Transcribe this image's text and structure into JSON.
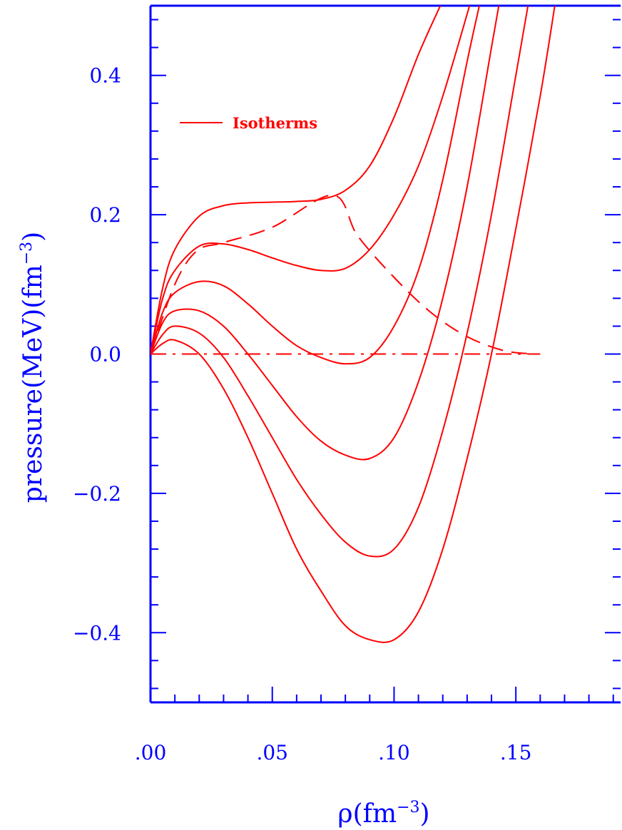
{
  "chart_data": {
    "type": "line",
    "title": "",
    "xlabel": "ρ(fm",
    "xlabel_exp": "−3",
    "xlabel_close": ")",
    "ylabel": "pressure(MeV)(fm",
    "ylabel_exp": "−3",
    "ylabel_close": ")",
    "xlim": [
      0,
      0.193
    ],
    "ylim": [
      -0.5,
      0.5
    ],
    "x_ticks": [
      {
        "value": 0.0,
        "label": ".00"
      },
      {
        "value": 0.05,
        "label": ".05"
      },
      {
        "value": 0.1,
        "label": ".10"
      },
      {
        "value": 0.15,
        "label": ".15"
      }
    ],
    "y_ticks": [
      {
        "value": 0.4,
        "label": "0.4"
      },
      {
        "value": 0.2,
        "label": "0.2"
      },
      {
        "value": 0.0,
        "label": "0.0"
      },
      {
        "value": -0.2,
        "label": "−0.2"
      },
      {
        "value": -0.4,
        "label": "−0.4"
      }
    ],
    "grid": false,
    "legend": {
      "position": "top-left",
      "entries": [
        {
          "label": "Isotherms",
          "style": "solid"
        }
      ]
    },
    "colors": {
      "axes": "#0000ff",
      "series": "#ff0000"
    },
    "series": [
      {
        "style": "solid",
        "points": [
          [
            0,
            0
          ],
          [
            0.005,
            0.095
          ],
          [
            0.01,
            0.15
          ],
          [
            0.02,
            0.198
          ],
          [
            0.03,
            0.213
          ],
          [
            0.04,
            0.217
          ],
          [
            0.05,
            0.218
          ],
          [
            0.06,
            0.219
          ],
          [
            0.07,
            0.222
          ],
          [
            0.08,
            0.235
          ],
          [
            0.09,
            0.27
          ],
          [
            0.1,
            0.34
          ],
          [
            0.11,
            0.43
          ],
          [
            0.119,
            0.5
          ]
        ]
      },
      {
        "style": "solid",
        "points": [
          [
            0,
            0
          ],
          [
            0.005,
            0.08
          ],
          [
            0.01,
            0.12
          ],
          [
            0.02,
            0.155
          ],
          [
            0.03,
            0.158
          ],
          [
            0.04,
            0.15
          ],
          [
            0.05,
            0.138
          ],
          [
            0.06,
            0.127
          ],
          [
            0.07,
            0.12
          ],
          [
            0.08,
            0.123
          ],
          [
            0.09,
            0.15
          ],
          [
            0.1,
            0.2
          ],
          [
            0.11,
            0.27
          ],
          [
            0.12,
            0.37
          ],
          [
            0.131,
            0.5
          ]
        ]
      },
      {
        "style": "solid",
        "points": [
          [
            0,
            0
          ],
          [
            0.005,
            0.06
          ],
          [
            0.01,
            0.088
          ],
          [
            0.02,
            0.104
          ],
          [
            0.03,
            0.098
          ],
          [
            0.04,
            0.072
          ],
          [
            0.05,
            0.04
          ],
          [
            0.06,
            0.012
          ],
          [
            0.07,
            -0.005
          ],
          [
            0.08,
            -0.014
          ],
          [
            0.09,
            -0.005
          ],
          [
            0.1,
            0.04
          ],
          [
            0.11,
            0.12
          ],
          [
            0.12,
            0.25
          ],
          [
            0.13,
            0.42
          ],
          [
            0.135,
            0.5
          ]
        ]
      },
      {
        "style": "solid",
        "points": [
          [
            0,
            0
          ],
          [
            0.005,
            0.045
          ],
          [
            0.01,
            0.062
          ],
          [
            0.02,
            0.062
          ],
          [
            0.03,
            0.04
          ],
          [
            0.04,
            0.0
          ],
          [
            0.05,
            -0.045
          ],
          [
            0.06,
            -0.09
          ],
          [
            0.07,
            -0.125
          ],
          [
            0.08,
            -0.145
          ],
          [
            0.09,
            -0.15
          ],
          [
            0.1,
            -0.12
          ],
          [
            0.11,
            -0.04
          ],
          [
            0.12,
            0.08
          ],
          [
            0.13,
            0.24
          ],
          [
            0.14,
            0.44
          ],
          [
            0.143,
            0.5
          ]
        ]
      },
      {
        "style": "solid",
        "points": [
          [
            0,
            0
          ],
          [
            0.005,
            0.028
          ],
          [
            0.01,
            0.04
          ],
          [
            0.02,
            0.03
          ],
          [
            0.03,
            -0.005
          ],
          [
            0.04,
            -0.06
          ],
          [
            0.05,
            -0.12
          ],
          [
            0.06,
            -0.18
          ],
          [
            0.07,
            -0.23
          ],
          [
            0.08,
            -0.27
          ],
          [
            0.09,
            -0.29
          ],
          [
            0.1,
            -0.28
          ],
          [
            0.11,
            -0.22
          ],
          [
            0.12,
            -0.11
          ],
          [
            0.13,
            0.03
          ],
          [
            0.14,
            0.2
          ],
          [
            0.15,
            0.4
          ],
          [
            0.155,
            0.5
          ]
        ]
      },
      {
        "style": "solid",
        "points": [
          [
            0,
            0
          ],
          [
            0.005,
            0.015
          ],
          [
            0.01,
            0.02
          ],
          [
            0.02,
            0.0
          ],
          [
            0.03,
            -0.05
          ],
          [
            0.04,
            -0.12
          ],
          [
            0.05,
            -0.2
          ],
          [
            0.06,
            -0.28
          ],
          [
            0.07,
            -0.34
          ],
          [
            0.08,
            -0.39
          ],
          [
            0.09,
            -0.41
          ],
          [
            0.1,
            -0.41
          ],
          [
            0.11,
            -0.37
          ],
          [
            0.12,
            -0.28
          ],
          [
            0.13,
            -0.15
          ],
          [
            0.14,
            0.0
          ],
          [
            0.15,
            0.18
          ],
          [
            0.16,
            0.37
          ],
          [
            0.166,
            0.5
          ]
        ]
      },
      {
        "style": "dashed",
        "points": [
          [
            0,
            0
          ],
          [
            0.01,
            0.1
          ],
          [
            0.019,
            0.148
          ],
          [
            0.03,
            0.16
          ],
          [
            0.05,
            0.182
          ],
          [
            0.075,
            0.228
          ],
          [
            0.085,
            0.17
          ],
          [
            0.1,
            0.11
          ],
          [
            0.115,
            0.06
          ],
          [
            0.13,
            0.025
          ],
          [
            0.145,
            0.005
          ],
          [
            0.158,
            0.0
          ]
        ]
      },
      {
        "style": "dashdot",
        "points": [
          [
            0,
            0
          ],
          [
            0.16,
            0
          ]
        ]
      }
    ]
  }
}
